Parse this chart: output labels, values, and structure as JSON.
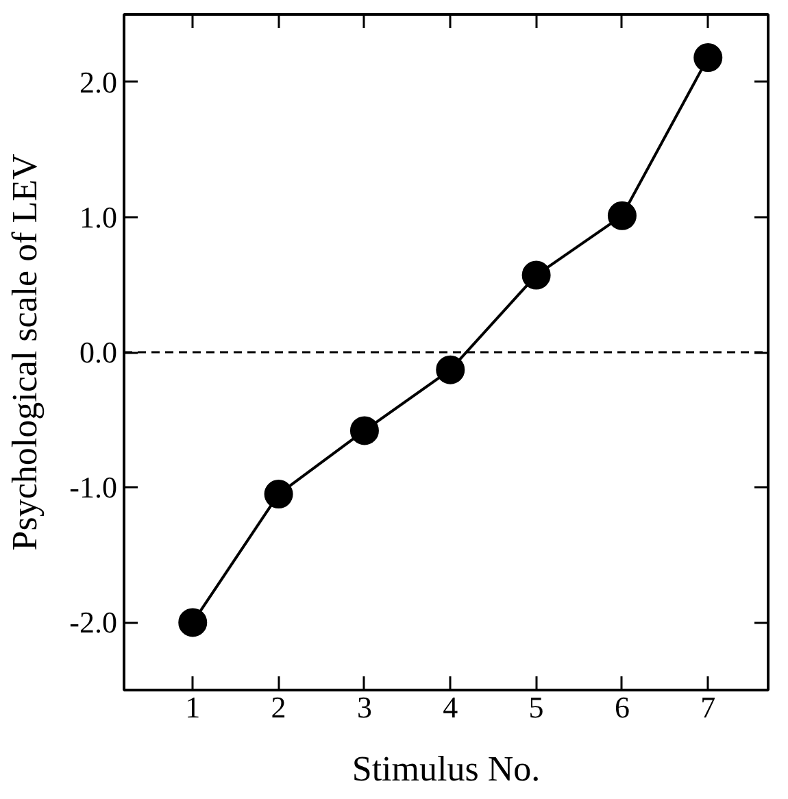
{
  "chart_data": {
    "type": "line",
    "xlabel": "Stimulus No.",
    "ylabel": "Psychological scale of LEV",
    "x": [
      1,
      2,
      3,
      4,
      5,
      6,
      7
    ],
    "series": [
      {
        "color": "#000000",
        "values": [
          -2.0,
          -1.05,
          -0.58,
          -0.13,
          0.57,
          1.01,
          2.18
        ]
      }
    ],
    "marker": "circle",
    "line_style": "solid",
    "grid": false,
    "xlim": [
      0.2,
      7.7
    ],
    "xticks": [
      1,
      2,
      3,
      4,
      5,
      6,
      7
    ],
    "ylim": [
      -2.5,
      2.5
    ],
    "yticks": [
      {
        "value": -2,
        "label": "-2.0"
      },
      {
        "value": -1,
        "label": "-1.0"
      },
      {
        "value": 0,
        "label": "0.0"
      },
      {
        "value": 1,
        "label": "1.0"
      },
      {
        "value": 2,
        "label": "2.0"
      }
    ],
    "ref_lines": [
      {
        "axis": "y",
        "value": 0,
        "label": null,
        "color": "#000000",
        "line_style": "dashed"
      }
    ]
  }
}
